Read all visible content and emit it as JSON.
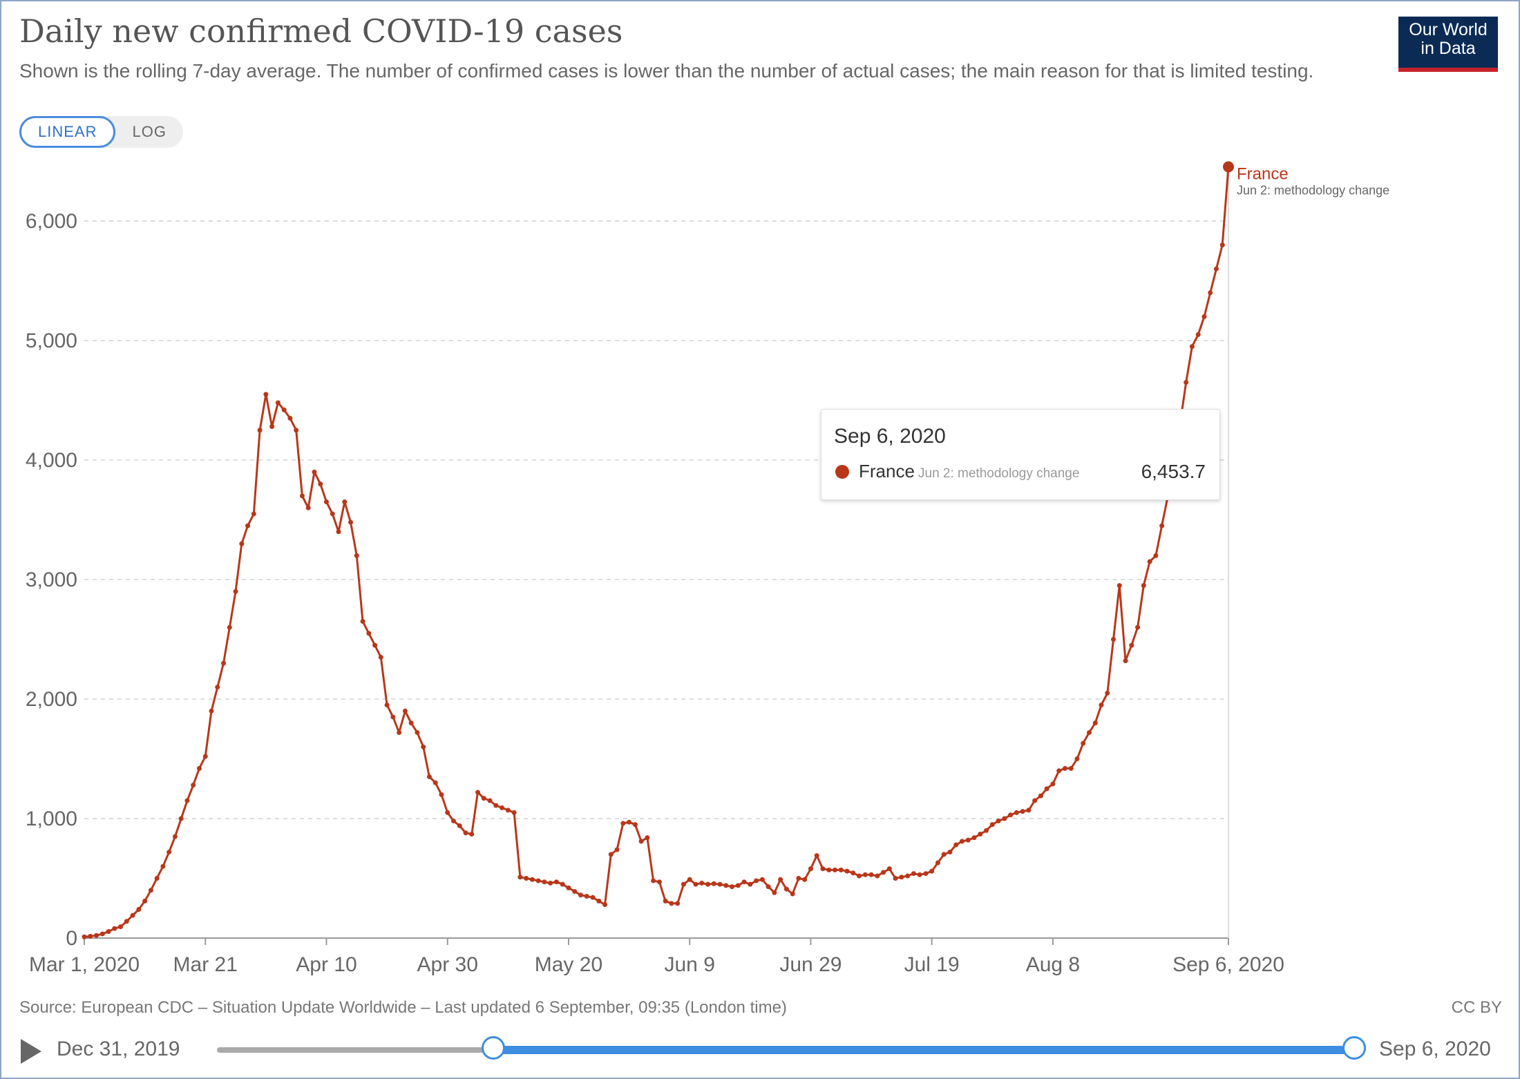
{
  "header": {
    "title": "Daily new confirmed COVID-19 cases",
    "subtitle": "Shown is the rolling 7-day average. The number of confirmed cases is lower than the number of actual cases; the main reason for that is limited testing.",
    "scale_linear": "LINEAR",
    "scale_log": "LOG",
    "logo_line1": "Our World",
    "logo_line2": "in Data"
  },
  "tooltip": {
    "date": "Sep 6, 2020",
    "entity": "France",
    "note": "Jun 2: methodology change",
    "value": "6,453.7"
  },
  "footer": {
    "source": "Source: European CDC – Situation Update Worldwide – Last updated 6 September, 09:35 (London time)",
    "license": "CC BY"
  },
  "timeline": {
    "start_label": "Dec 31, 2019",
    "end_label": "Sep 6, 2020"
  },
  "colors": {
    "series": "#b8371a",
    "grid": "#dddddd",
    "accent": "#3d8ee0"
  },
  "chart_data": {
    "type": "line",
    "title": "Daily new confirmed COVID-19 cases",
    "xlabel": "",
    "ylabel": "",
    "ylim": [
      0,
      6500
    ],
    "x_start": "2020-03-01",
    "x_end": "2020-09-06",
    "yticks": [
      0,
      1000,
      2000,
      3000,
      4000,
      5000,
      6000
    ],
    "ytick_labels": [
      "0",
      "1,000",
      "2,000",
      "3,000",
      "4,000",
      "5,000",
      "6,000"
    ],
    "xticks": [
      "Mar 1, 2020",
      "Mar 21",
      "Apr 10",
      "Apr 30",
      "May 20",
      "Jun 9",
      "Jun 29",
      "Jul 19",
      "Aug 8",
      "Sep 6, 2020"
    ],
    "grid": true,
    "series": [
      {
        "name": "France",
        "annotation": "Jun 2: methodology change",
        "points": [
          [
            "2020-03-01",
            10
          ],
          [
            "2020-03-02",
            15
          ],
          [
            "2020-03-03",
            22
          ],
          [
            "2020-03-04",
            35
          ],
          [
            "2020-03-05",
            55
          ],
          [
            "2020-03-06",
            80
          ],
          [
            "2020-03-07",
            95
          ],
          [
            "2020-03-08",
            140
          ],
          [
            "2020-03-09",
            190
          ],
          [
            "2020-03-10",
            240
          ],
          [
            "2020-03-11",
            310
          ],
          [
            "2020-03-12",
            400
          ],
          [
            "2020-03-13",
            500
          ],
          [
            "2020-03-14",
            600
          ],
          [
            "2020-03-15",
            720
          ],
          [
            "2020-03-16",
            850
          ],
          [
            "2020-03-17",
            1000
          ],
          [
            "2020-03-18",
            1150
          ],
          [
            "2020-03-19",
            1280
          ],
          [
            "2020-03-20",
            1420
          ],
          [
            "2020-03-21",
            1520
          ],
          [
            "2020-03-22",
            1900
          ],
          [
            "2020-03-23",
            2100
          ],
          [
            "2020-03-24",
            2300
          ],
          [
            "2020-03-25",
            2600
          ],
          [
            "2020-03-26",
            2900
          ],
          [
            "2020-03-27",
            3300
          ],
          [
            "2020-03-28",
            3450
          ],
          [
            "2020-03-29",
            3550
          ],
          [
            "2020-03-30",
            4250
          ],
          [
            "2020-03-31",
            4550
          ],
          [
            "2020-04-01",
            4280
          ],
          [
            "2020-04-02",
            4480
          ],
          [
            "2020-04-03",
            4420
          ],
          [
            "2020-04-04",
            4350
          ],
          [
            "2020-04-05",
            4250
          ],
          [
            "2020-04-06",
            3700
          ],
          [
            "2020-04-07",
            3600
          ],
          [
            "2020-04-08",
            3900
          ],
          [
            "2020-04-09",
            3800
          ],
          [
            "2020-04-10",
            3650
          ],
          [
            "2020-04-11",
            3550
          ],
          [
            "2020-04-12",
            3400
          ],
          [
            "2020-04-13",
            3650
          ],
          [
            "2020-04-14",
            3480
          ],
          [
            "2020-04-15",
            3200
          ],
          [
            "2020-04-16",
            2650
          ],
          [
            "2020-04-17",
            2550
          ],
          [
            "2020-04-18",
            2450
          ],
          [
            "2020-04-19",
            2350
          ],
          [
            "2020-04-20",
            1950
          ],
          [
            "2020-04-21",
            1850
          ],
          [
            "2020-04-22",
            1720
          ],
          [
            "2020-04-23",
            1900
          ],
          [
            "2020-04-24",
            1800
          ],
          [
            "2020-04-25",
            1720
          ],
          [
            "2020-04-26",
            1600
          ],
          [
            "2020-04-27",
            1350
          ],
          [
            "2020-04-28",
            1300
          ],
          [
            "2020-04-29",
            1200
          ],
          [
            "2020-04-30",
            1050
          ],
          [
            "2020-05-01",
            980
          ],
          [
            "2020-05-02",
            940
          ],
          [
            "2020-05-03",
            880
          ],
          [
            "2020-05-04",
            870
          ],
          [
            "2020-05-05",
            1220
          ],
          [
            "2020-05-06",
            1170
          ],
          [
            "2020-05-07",
            1150
          ],
          [
            "2020-05-08",
            1110
          ],
          [
            "2020-05-09",
            1090
          ],
          [
            "2020-05-10",
            1070
          ],
          [
            "2020-05-11",
            1050
          ],
          [
            "2020-05-12",
            510
          ],
          [
            "2020-05-13",
            500
          ],
          [
            "2020-05-14",
            490
          ],
          [
            "2020-05-15",
            480
          ],
          [
            "2020-05-16",
            470
          ],
          [
            "2020-05-17",
            460
          ],
          [
            "2020-05-18",
            470
          ],
          [
            "2020-05-19",
            450
          ],
          [
            "2020-05-20",
            420
          ],
          [
            "2020-05-21",
            390
          ],
          [
            "2020-05-22",
            360
          ],
          [
            "2020-05-23",
            350
          ],
          [
            "2020-05-24",
            340
          ],
          [
            "2020-05-25",
            310
          ],
          [
            "2020-05-26",
            280
          ],
          [
            "2020-05-27",
            700
          ],
          [
            "2020-05-28",
            740
          ],
          [
            "2020-05-29",
            960
          ],
          [
            "2020-05-30",
            970
          ],
          [
            "2020-05-31",
            950
          ],
          [
            "2020-06-01",
            810
          ],
          [
            "2020-06-02",
            840
          ],
          [
            "2020-06-03",
            480
          ],
          [
            "2020-06-04",
            470
          ],
          [
            "2020-06-05",
            310
          ],
          [
            "2020-06-06",
            290
          ],
          [
            "2020-06-07",
            290
          ],
          [
            "2020-06-08",
            450
          ],
          [
            "2020-06-09",
            490
          ],
          [
            "2020-06-10",
            450
          ],
          [
            "2020-06-11",
            460
          ],
          [
            "2020-06-12",
            450
          ],
          [
            "2020-06-13",
            455
          ],
          [
            "2020-06-14",
            450
          ],
          [
            "2020-06-15",
            440
          ],
          [
            "2020-06-16",
            430
          ],
          [
            "2020-06-17",
            440
          ],
          [
            "2020-06-18",
            470
          ],
          [
            "2020-06-19",
            450
          ],
          [
            "2020-06-20",
            480
          ],
          [
            "2020-06-21",
            490
          ],
          [
            "2020-06-22",
            430
          ],
          [
            "2020-06-23",
            380
          ],
          [
            "2020-06-24",
            490
          ],
          [
            "2020-06-25",
            410
          ],
          [
            "2020-06-26",
            370
          ],
          [
            "2020-06-27",
            500
          ],
          [
            "2020-06-28",
            490
          ],
          [
            "2020-06-29",
            580
          ],
          [
            "2020-06-30",
            690
          ],
          [
            "2020-07-01",
            580
          ],
          [
            "2020-07-02",
            570
          ],
          [
            "2020-07-03",
            570
          ],
          [
            "2020-07-04",
            570
          ],
          [
            "2020-07-05",
            560
          ],
          [
            "2020-07-06",
            545
          ],
          [
            "2020-07-07",
            520
          ],
          [
            "2020-07-08",
            530
          ],
          [
            "2020-07-09",
            530
          ],
          [
            "2020-07-10",
            520
          ],
          [
            "2020-07-11",
            550
          ],
          [
            "2020-07-12",
            580
          ],
          [
            "2020-07-13",
            500
          ],
          [
            "2020-07-14",
            510
          ],
          [
            "2020-07-15",
            520
          ],
          [
            "2020-07-16",
            540
          ],
          [
            "2020-07-17",
            530
          ],
          [
            "2020-07-18",
            540
          ],
          [
            "2020-07-19",
            560
          ],
          [
            "2020-07-20",
            630
          ],
          [
            "2020-07-21",
            700
          ],
          [
            "2020-07-22",
            720
          ],
          [
            "2020-07-23",
            780
          ],
          [
            "2020-07-24",
            810
          ],
          [
            "2020-07-25",
            820
          ],
          [
            "2020-07-26",
            840
          ],
          [
            "2020-07-27",
            870
          ],
          [
            "2020-07-28",
            900
          ],
          [
            "2020-07-29",
            950
          ],
          [
            "2020-07-30",
            980
          ],
          [
            "2020-07-31",
            1000
          ],
          [
            "2020-08-01",
            1030
          ],
          [
            "2020-08-02",
            1050
          ],
          [
            "2020-08-03",
            1060
          ],
          [
            "2020-08-04",
            1070
          ],
          [
            "2020-08-05",
            1150
          ],
          [
            "2020-08-06",
            1190
          ],
          [
            "2020-08-07",
            1250
          ],
          [
            "2020-08-08",
            1290
          ],
          [
            "2020-08-09",
            1400
          ],
          [
            "2020-08-10",
            1420
          ],
          [
            "2020-08-11",
            1420
          ],
          [
            "2020-08-12",
            1500
          ],
          [
            "2020-08-13",
            1630
          ],
          [
            "2020-08-14",
            1720
          ],
          [
            "2020-08-15",
            1800
          ],
          [
            "2020-08-16",
            1950
          ],
          [
            "2020-08-17",
            2050
          ],
          [
            "2020-08-18",
            2500
          ],
          [
            "2020-08-19",
            2950
          ],
          [
            "2020-08-20",
            2320
          ],
          [
            "2020-08-21",
            2450
          ],
          [
            "2020-08-22",
            2600
          ],
          [
            "2020-08-23",
            2950
          ],
          [
            "2020-08-24",
            3150
          ],
          [
            "2020-08-25",
            3200
          ],
          [
            "2020-08-26",
            3450
          ],
          [
            "2020-08-27",
            3700
          ],
          [
            "2020-08-28",
            3900
          ],
          [
            "2020-08-29",
            4300
          ],
          [
            "2020-08-30",
            4650
          ],
          [
            "2020-08-31",
            4950
          ],
          [
            "2020-09-01",
            5050
          ],
          [
            "2020-09-02",
            5200
          ],
          [
            "2020-09-03",
            5400
          ],
          [
            "2020-09-04",
            5600
          ],
          [
            "2020-09-05",
            5800
          ],
          [
            "2020-09-06",
            6453.7
          ]
        ]
      }
    ]
  }
}
